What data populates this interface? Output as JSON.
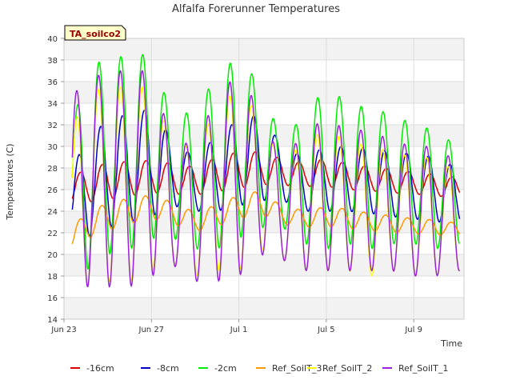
{
  "chart_data": {
    "type": "line",
    "title": "Alfalfa Forerunner Temperatures",
    "xlabel": "Time",
    "ylabel": "Temperatures (C)",
    "badge": "TA_soilco2",
    "ylim": [
      14,
      40
    ],
    "yticks": [
      14,
      16,
      18,
      20,
      22,
      24,
      26,
      28,
      30,
      32,
      34,
      36,
      38,
      40
    ],
    "xlim_days": [
      0,
      18.3
    ],
    "xticks": [
      {
        "label": "Jun 23",
        "day": 0
      },
      {
        "label": "Jun 27",
        "day": 4
      },
      {
        "label": "Jul 1",
        "day": 8
      },
      {
        "label": "Jul 5",
        "day": 12
      },
      {
        "label": "Jul 9",
        "day": 16
      }
    ],
    "grid": true,
    "legend_position": "bottom",
    "series": [
      {
        "name": "-16cm",
        "color": "#dd0000",
        "width": 1.5,
        "mean": [
          25.8,
          26.3,
          26.8,
          27.0,
          27.2,
          27.0,
          26.8,
          27.4,
          27.8,
          28.0,
          27.6,
          27.4,
          27.6,
          27.2,
          27.0,
          26.8,
          26.6,
          26.4,
          26.2
        ],
        "amp": [
          1.2,
          1.5,
          1.7,
          1.6,
          1.5,
          1.4,
          1.3,
          1.6,
          1.7,
          1.5,
          1.2,
          1.1,
          1.3,
          1.2,
          1.1,
          1.1,
          1.0,
          1.0,
          0.9
        ],
        "phase": 0.75
      },
      {
        "name": "-8cm",
        "color": "#0000cc",
        "width": 1.5,
        "mean": [
          24.0,
          26.0,
          27.5,
          28.0,
          28.5,
          27.5,
          26.5,
          27.5,
          28.5,
          29.0,
          27.5,
          26.5,
          27.0,
          27.0,
          26.8,
          26.5,
          26.3,
          26.0,
          25.5
        ],
        "amp": [
          2.5,
          4.5,
          5.0,
          5.0,
          5.0,
          3.0,
          2.5,
          3.5,
          4.0,
          4.0,
          2.5,
          2.5,
          3.0,
          3.0,
          3.0,
          3.0,
          3.0,
          3.0,
          2.5
        ],
        "phase": 0.67
      },
      {
        "name": "-2cm",
        "color": "#00ee00",
        "width": 1.5,
        "mean": [
          24.0,
          28.0,
          29.0,
          29.5,
          30.0,
          27.0,
          27.0,
          28.5,
          30.0,
          29.0,
          26.5,
          27.0,
          28.0,
          27.5,
          27.0,
          27.0,
          26.5,
          26.0,
          25.5
        ],
        "amp": [
          4.0,
          9.5,
          9.0,
          9.0,
          8.5,
          5.5,
          6.5,
          8.0,
          8.5,
          6.5,
          4.0,
          6.0,
          7.5,
          6.5,
          6.5,
          6.0,
          5.5,
          5.5,
          4.5
        ],
        "phase": 0.6
      },
      {
        "name": "Ref_SoilT_3",
        "color": "#ff9900",
        "width": 1.5,
        "mean": [
          20.8,
          22.6,
          23.5,
          24.0,
          24.4,
          23.8,
          23.0,
          23.6,
          24.4,
          24.8,
          23.6,
          23.3,
          23.5,
          23.3,
          23.0,
          22.8,
          22.6,
          22.5,
          22.3
        ],
        "amp": [
          1.0,
          1.2,
          1.3,
          1.2,
          1.1,
          1.0,
          0.9,
          1.0,
          1.1,
          1.1,
          0.8,
          0.8,
          0.9,
          0.9,
          0.8,
          0.8,
          0.7,
          0.7,
          0.6
        ],
        "phase": 0.72
      },
      {
        "name": "Ref_SoilT_2",
        "color": "#ffff00",
        "width": 1.5,
        "mean": [
          23.0,
          26.0,
          26.5,
          26.5,
          27.0,
          24.5,
          24.0,
          26.0,
          27.0,
          26.5,
          24.0,
          24.5,
          25.0,
          24.5,
          24.0,
          24.0,
          23.5,
          23.5,
          23.0
        ],
        "amp": [
          6.5,
          9.0,
          9.0,
          9.0,
          8.5,
          5.5,
          6.0,
          7.5,
          8.5,
          6.0,
          4.5,
          6.0,
          6.5,
          6.0,
          6.0,
          5.5,
          5.5,
          5.5,
          4.5
        ],
        "phase": 0.58
      },
      {
        "name": "Ref_SoilT_1",
        "color": "#9922dd",
        "width": 1.5,
        "mean": [
          24.5,
          26.5,
          27.0,
          27.0,
          27.5,
          24.5,
          24.0,
          26.0,
          27.5,
          26.5,
          24.0,
          25.0,
          25.5,
          25.0,
          25.0,
          24.5,
          24.0,
          24.0,
          23.5
        ],
        "amp": [
          9.5,
          9.5,
          10.0,
          10.0,
          9.5,
          5.5,
          6.5,
          8.5,
          9.5,
          6.5,
          4.5,
          6.5,
          7.0,
          6.5,
          6.5,
          6.0,
          6.0,
          6.0,
          5.0
        ],
        "phase": 0.58
      }
    ]
  }
}
